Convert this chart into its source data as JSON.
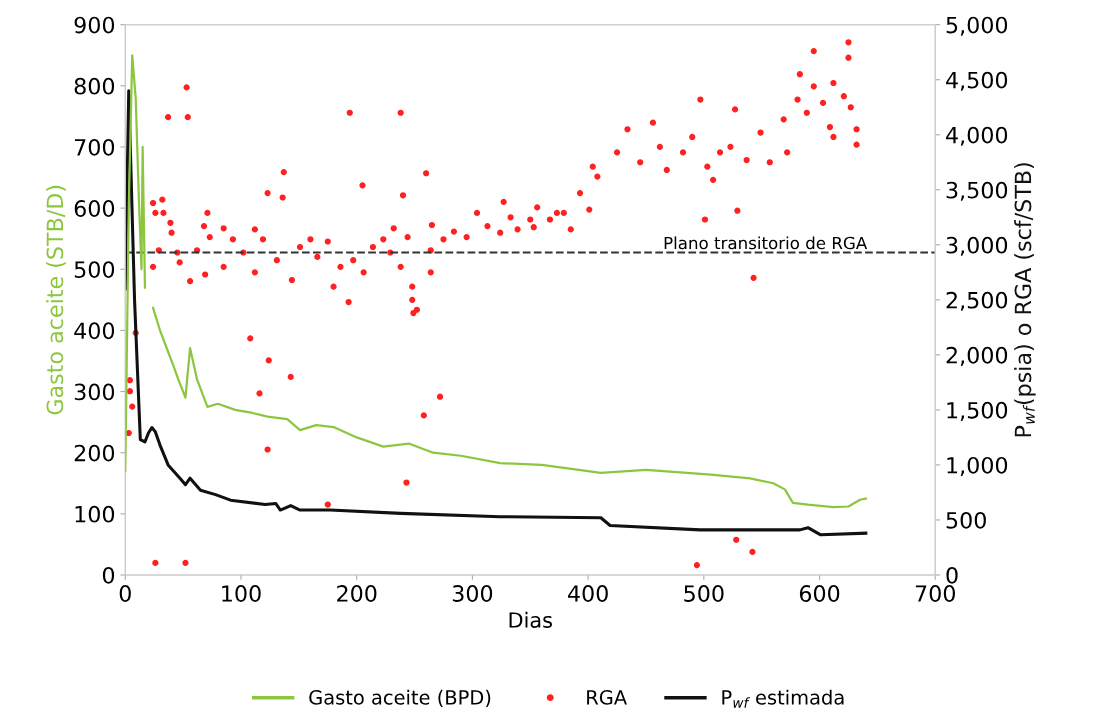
{
  "chart_data": {
    "type": "line",
    "xlabel": "Dias",
    "ylabel": "Gasto aceite (STB/D)",
    "y2label": "P$_{wf}$(psia) o RGA (scf/STB)",
    "xlim": [
      0,
      700
    ],
    "xticks": [
      0,
      100,
      200,
      300,
      400,
      500,
      600,
      700
    ],
    "ylim": [
      0,
      900
    ],
    "yticks": [
      0,
      100,
      200,
      300,
      400,
      500,
      600,
      700,
      800,
      900
    ],
    "y2lim": [
      0,
      5000
    ],
    "y2ticks": [
      0,
      {
        "value": 500,
        "label": "500"
      },
      {
        "value": 1000,
        "label": "1,000"
      },
      {
        "value": 1500,
        "label": "1,500"
      },
      {
        "value": 2000,
        "label": "2,000"
      },
      {
        "value": 2500,
        "label": "2,500"
      },
      {
        "value": 3000,
        "label": "3,000"
      },
      {
        "value": 3500,
        "label": "3,500"
      },
      {
        "value": 4000,
        "label": "4,000"
      },
      {
        "value": 4500,
        "label": "4,500"
      },
      {
        "value": 5000,
        "label": "5,000"
      }
    ],
    "grid": false,
    "legend": "bottom",
    "ref_lines": [
      {
        "axis": "y2",
        "value": 2930,
        "label": "Plano transitorio de RGA",
        "color": "#333333",
        "line_style": "dashed"
      }
    ],
    "series": [
      {
        "name": "Gasto aceite (BPD)",
        "color": "#8cc63f",
        "x": [
          0,
          3,
          6,
          9,
          12,
          14,
          15,
          17,
          22,
          24,
          30,
          36,
          42,
          46,
          52,
          56,
          62,
          71,
          80,
          95,
          110,
          123,
          140,
          151,
          165,
          180,
          200,
          223,
          245,
          266,
          290,
          324,
          360,
          411,
          450,
          506,
          540,
          560,
          570,
          577,
          590,
          612,
          625,
          635,
          640
        ],
        "values": [
          170,
          600,
          850,
          780,
          600,
          500,
          700,
          470,
          null,
          437,
          400,
          370,
          340,
          319,
          290,
          371,
          320,
          275,
          280,
          270,
          265,
          259,
          255,
          237,
          245,
          242,
          225,
          210,
          215,
          200,
          195,
          183,
          180,
          167,
          172,
          164,
          158,
          150,
          140,
          118,
          115,
          111,
          112,
          123,
          125
        ]
      },
      {
        "name": "RGA",
        "type": "scatter",
        "axis": "y2",
        "color": "#ff2020",
        "marker": "circle",
        "x": [
          4,
          4,
          6,
          3,
          9,
          26,
          52,
          37,
          53,
          54,
          24,
          32,
          26,
          33,
          39,
          40,
          29,
          24,
          45,
          47,
          56,
          71,
          68,
          73,
          62,
          69,
          85,
          93,
          102,
          85,
          112,
          119,
          112,
          131,
          144,
          151,
          160,
          166,
          175,
          180,
          186,
          197,
          206,
          214,
          223,
          232,
          229,
          238,
          244,
          248,
          252,
          249,
          264,
          265,
          264,
          275,
          284,
          295,
          304,
          313,
          324,
          327,
          339,
          350,
          356,
          367,
          379,
          385,
          393,
          404,
          401,
          333,
          353,
          373,
          408,
          425,
          434,
          445,
          456,
          462,
          468,
          482,
          490,
          503,
          508,
          514,
          523,
          527,
          537,
          549,
          557,
          569,
          572,
          581,
          589,
          595,
          603,
          609,
          612,
          621,
          627,
          632,
          632,
          612,
          137,
          260,
          123,
          136,
          240,
          205,
          194,
          238,
          193,
          248,
          108,
          124,
          143,
          116,
          123,
          243,
          258,
          272,
          175,
          494,
          528,
          542,
          497,
          543,
          529,
          501,
          595,
          625,
          625,
          583
        ],
        "values": [
          1770,
          1670,
          1530,
          1290,
          2200,
          110,
          110,
          4160,
          4430,
          4160,
          3380,
          3410,
          3290,
          3290,
          3200,
          3110,
          2950,
          2800,
          2930,
          2840,
          2670,
          3290,
          3170,
          3070,
          2950,
          2730,
          3150,
          3050,
          2930,
          2800,
          3140,
          3050,
          2750,
          2860,
          2680,
          2980,
          3050,
          2890,
          3030,
          2620,
          2800,
          2860,
          2750,
          2980,
          3050,
          3150,
          2930,
          2800,
          3070,
          2500,
          2410,
          2380,
          2950,
          3180,
          2750,
          3050,
          3120,
          3070,
          3290,
          3170,
          3110,
          3390,
          3140,
          3230,
          3340,
          3230,
          3290,
          3140,
          3470,
          3710,
          3320,
          3250,
          3160,
          3290,
          3620,
          3840,
          4050,
          3750,
          4110,
          3890,
          3680,
          3840,
          3980,
          3710,
          3590,
          3840,
          3890,
          4230,
          3770,
          4020,
          3750,
          4140,
          3840,
          4320,
          4200,
          4440,
          4290,
          4070,
          4470,
          4350,
          4250,
          4050,
          3910,
          3980,
          3660,
          3650,
          3470,
          3430,
          3450,
          3540,
          4200,
          4200,
          2480,
          2620,
          2150,
          1950,
          1800,
          1650,
          1140,
          840,
          1450,
          1620,
          640,
          90,
          320,
          210,
          4320,
          2700,
          3310,
          3230,
          4760,
          4840,
          4700,
          4550
        ]
      },
      {
        "name": "P$_{wf}$ estimada",
        "axis": "y2",
        "color": "#111111",
        "x": [
          0,
          3,
          8,
          13,
          17,
          20,
          23,
          26,
          30,
          37,
          48,
          52,
          56,
          65,
          78,
          91,
          121,
          130,
          134,
          143,
          151,
          177,
          238,
          324,
          411,
          419,
          497,
          583,
          590,
          601,
          640
        ],
        "values": [
          2600,
          4400,
          2500,
          1230,
          1210,
          1290,
          1340,
          1300,
          1180,
          1000,
          870,
          820,
          880,
          770,
          730,
          680,
          640,
          650,
          590,
          630,
          590,
          590,
          560,
          530,
          520,
          450,
          410,
          410,
          430,
          365,
          380
        ]
      }
    ]
  }
}
